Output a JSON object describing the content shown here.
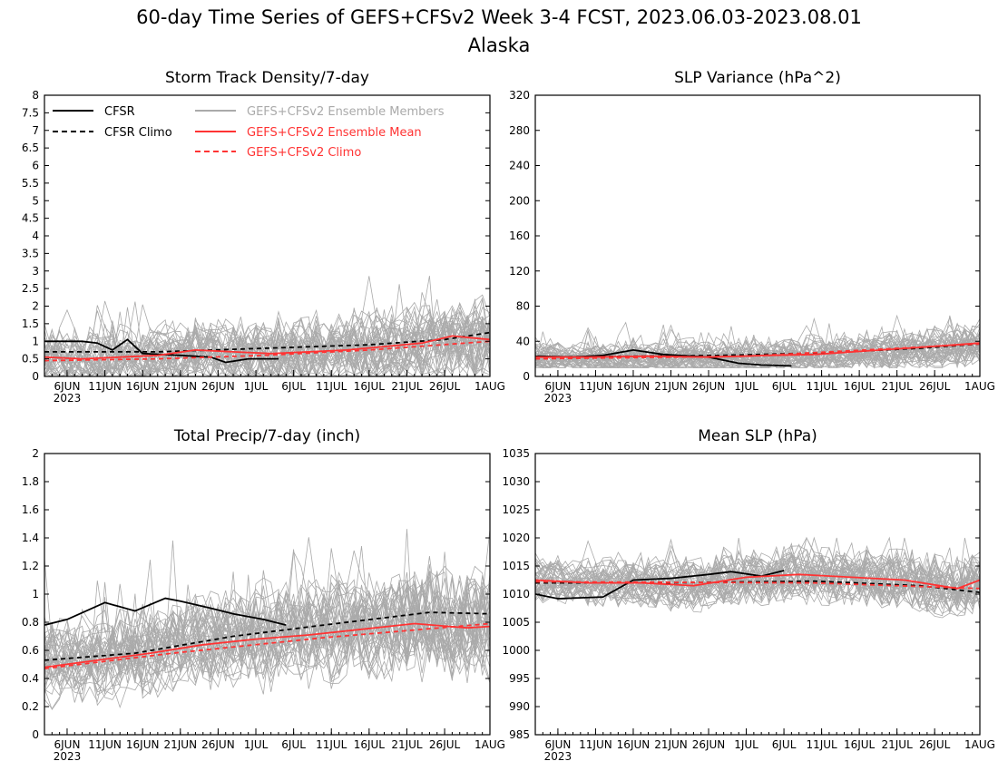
{
  "title_line1": "60-day Time Series of GEFS+CFSv2 Week 3-4 FCST, 2023.06.03-2023.08.01",
  "title_line2": "Alaska",
  "x_ticks": [
    "6JUN",
    "11JUN",
    "16JUN",
    "21JUN",
    "26JUN",
    "1JUL",
    "6JUL",
    "11JUL",
    "16JUL",
    "21JUL",
    "26JUL",
    "1AUG"
  ],
  "x_year": "2023",
  "colors": {
    "cfsr": "#000000",
    "members": "#aaaaaa",
    "ens_mean": "#ff3333",
    "axes": "#000000"
  },
  "legend": [
    {
      "label": "CFSR",
      "style": "solid",
      "color": "#000000"
    },
    {
      "label": "CFSR Climo",
      "style": "dashed",
      "color": "#000000"
    },
    {
      "label": "GEFS+CFSv2 Ensemble Members",
      "style": "solid",
      "color": "#aaaaaa"
    },
    {
      "label": "GEFS+CFSv2 Ensemble Mean",
      "style": "solid",
      "color": "#ff3333"
    },
    {
      "label": "GEFS+CFSv2 Climo",
      "style": "dashed",
      "color": "#ff3333"
    }
  ],
  "chart_data": [
    {
      "type": "line",
      "title": "Storm Track Density/7-day",
      "ylim": [
        0,
        8
      ],
      "yticks": [
        "0",
        "0.5",
        "1",
        "1.5",
        "2",
        "2.5",
        "3",
        "3.5",
        "4",
        "4.5",
        "5",
        "5.5",
        "6",
        "6.5",
        "7",
        "7.5",
        "8"
      ],
      "x_range": [
        "2023-06-03",
        "2023-08-01"
      ],
      "ensemble_members": {
        "count": 40,
        "typical_range": [
          0,
          4
        ]
      },
      "series": [
        {
          "name": "CFSR",
          "style": "solid",
          "x": [
            "2023-06-03",
            "2023-06-08",
            "2023-06-10",
            "2023-06-12",
            "2023-06-14",
            "2023-06-16",
            "2023-06-21",
            "2023-06-25",
            "2023-06-27",
            "2023-06-30",
            "2023-07-04"
          ],
          "y": [
            1.0,
            1.0,
            0.95,
            0.75,
            1.05,
            0.65,
            0.6,
            0.55,
            0.4,
            0.5,
            0.5
          ]
        },
        {
          "name": "CFSR Climo",
          "style": "dashed",
          "x": [
            "2023-06-03",
            "2023-06-18",
            "2023-07-02",
            "2023-07-16",
            "2023-07-26",
            "2023-08-01"
          ],
          "y": [
            0.7,
            0.7,
            0.8,
            0.9,
            1.05,
            1.25
          ]
        },
        {
          "name": "GEFS+CFSv2 Ensemble Mean",
          "style": "solid",
          "x": [
            "2023-06-03",
            "2023-06-08",
            "2023-06-13",
            "2023-06-18",
            "2023-06-23",
            "2023-06-28",
            "2023-07-03",
            "2023-07-08",
            "2023-07-13",
            "2023-07-18",
            "2023-07-23",
            "2023-07-27",
            "2023-08-01"
          ],
          "y": [
            0.55,
            0.5,
            0.55,
            0.6,
            0.75,
            0.7,
            0.65,
            0.7,
            0.75,
            0.85,
            0.95,
            1.15,
            1.05
          ]
        },
        {
          "name": "GEFS+CFSv2 Climo",
          "style": "dashed",
          "x": [
            "2023-06-03",
            "2023-06-18",
            "2023-07-02",
            "2023-07-16",
            "2023-08-01"
          ],
          "y": [
            0.45,
            0.5,
            0.6,
            0.75,
            1.0
          ]
        }
      ]
    },
    {
      "type": "line",
      "title": "SLP Variance (hPa^2)",
      "ylim": [
        0,
        320
      ],
      "yticks": [
        "0",
        "40",
        "80",
        "120",
        "160",
        "200",
        "240",
        "280",
        "320"
      ],
      "x_range": [
        "2023-06-03",
        "2023-08-01"
      ],
      "ensemble_members": {
        "count": 40,
        "typical_range": [
          10,
          95
        ]
      },
      "series": [
        {
          "name": "CFSR",
          "style": "solid",
          "x": [
            "2023-06-03",
            "2023-06-08",
            "2023-06-12",
            "2023-06-16",
            "2023-06-20",
            "2023-06-26",
            "2023-06-30",
            "2023-07-03",
            "2023-07-07"
          ],
          "y": [
            23,
            22,
            24,
            30,
            25,
            22,
            15,
            13,
            12
          ]
        },
        {
          "name": "CFSR Climo",
          "style": "dashed",
          "x": [
            "2023-06-03",
            "2023-06-28",
            "2023-07-12",
            "2023-07-24",
            "2023-08-01"
          ],
          "y": [
            22,
            24,
            27,
            32,
            37
          ]
        },
        {
          "name": "GEFS+CFSv2 Ensemble Mean",
          "style": "solid",
          "x": [
            "2023-06-03",
            "2023-06-10",
            "2023-06-18",
            "2023-06-26",
            "2023-07-04",
            "2023-07-10",
            "2023-07-17",
            "2023-07-24",
            "2023-08-01"
          ],
          "y": [
            22,
            22,
            23,
            22,
            24,
            25,
            29,
            33,
            38
          ]
        },
        {
          "name": "GEFS+CFSv2 Climo",
          "style": "dashed",
          "x": [
            "2023-06-03",
            "2023-07-01",
            "2023-08-01"
          ],
          "y": [
            20,
            23,
            37
          ]
        }
      ]
    },
    {
      "type": "line",
      "title": "Total Precip/7-day (inch)",
      "ylim": [
        0,
        2
      ],
      "yticks": [
        "0",
        "0.2",
        "0.4",
        "0.6",
        "0.8",
        "1",
        "1.2",
        "1.4",
        "1.6",
        "1.8",
        "2"
      ],
      "x_range": [
        "2023-06-03",
        "2023-08-01"
      ],
      "ensemble_members": {
        "count": 40,
        "typical_range": [
          0.15,
          1.6
        ]
      },
      "series": [
        {
          "name": "CFSR",
          "style": "solid",
          "x": [
            "2023-06-03",
            "2023-06-06",
            "2023-06-11",
            "2023-06-15",
            "2023-06-19",
            "2023-06-21",
            "2023-06-25",
            "2023-06-28",
            "2023-07-02",
            "2023-07-05"
          ],
          "y": [
            0.78,
            0.82,
            0.94,
            0.88,
            0.97,
            0.95,
            0.9,
            0.86,
            0.82,
            0.78
          ]
        },
        {
          "name": "CFSR Climo",
          "style": "dashed",
          "x": [
            "2023-06-03",
            "2023-06-15",
            "2023-06-28",
            "2023-07-10",
            "2023-07-24",
            "2023-08-01"
          ],
          "y": [
            0.53,
            0.58,
            0.7,
            0.78,
            0.87,
            0.86
          ]
        },
        {
          "name": "GEFS+CFSv2 Ensemble Mean",
          "style": "solid",
          "x": [
            "2023-06-03",
            "2023-06-10",
            "2023-06-17",
            "2023-06-24",
            "2023-07-01",
            "2023-07-08",
            "2023-07-15",
            "2023-07-22",
            "2023-07-29",
            "2023-08-01"
          ],
          "y": [
            0.48,
            0.53,
            0.58,
            0.64,
            0.68,
            0.71,
            0.75,
            0.79,
            0.76,
            0.77
          ]
        },
        {
          "name": "GEFS+CFSv2 Climo",
          "style": "dashed",
          "x": [
            "2023-06-03",
            "2023-06-20",
            "2023-07-10",
            "2023-08-01"
          ],
          "y": [
            0.47,
            0.58,
            0.69,
            0.79
          ]
        }
      ]
    },
    {
      "type": "line",
      "title": "Mean SLP (hPa)",
      "ylim": [
        985,
        1035
      ],
      "yticks": [
        "985",
        "990",
        "995",
        "1000",
        "1005",
        "1010",
        "1015",
        "1020",
        "1025",
        "1030",
        "1035"
      ],
      "x_range": [
        "2023-06-03",
        "2023-08-01"
      ],
      "ensemble_members": {
        "count": 40,
        "typical_range": [
          1001,
          1020
        ]
      },
      "series": [
        {
          "name": "CFSR",
          "style": "solid",
          "x": [
            "2023-06-03",
            "2023-06-06",
            "2023-06-12",
            "2023-06-16",
            "2023-06-21",
            "2023-06-26",
            "2023-06-29",
            "2023-07-03",
            "2023-07-06"
          ],
          "y": [
            1010,
            1009.2,
            1009.5,
            1012.5,
            1012.8,
            1013.5,
            1014,
            1013.2,
            1014.2
          ]
        },
        {
          "name": "CFSR Climo",
          "style": "dashed",
          "x": [
            "2023-06-03",
            "2023-06-20",
            "2023-07-10",
            "2023-07-24",
            "2023-08-01"
          ],
          "y": [
            1012,
            1012,
            1012.3,
            1011.5,
            1010.3
          ]
        },
        {
          "name": "GEFS+CFSv2 Ensemble Mean",
          "style": "solid",
          "x": [
            "2023-06-03",
            "2023-06-10",
            "2023-06-17",
            "2023-06-24",
            "2023-07-01",
            "2023-07-08",
            "2023-07-15",
            "2023-07-22",
            "2023-07-29",
            "2023-08-01"
          ],
          "y": [
            1012.5,
            1012,
            1012,
            1011.5,
            1013,
            1013.5,
            1013,
            1012.5,
            1011,
            1012.5
          ]
        },
        {
          "name": "GEFS+CFSv2 Climo",
          "style": "dashed",
          "x": [
            "2023-06-03",
            "2023-07-10",
            "2023-08-01"
          ],
          "y": [
            1012.2,
            1012,
            1011
          ]
        }
      ]
    }
  ]
}
